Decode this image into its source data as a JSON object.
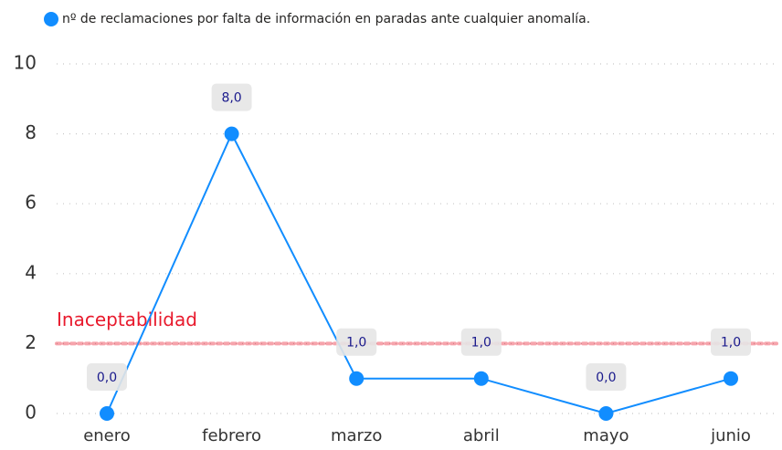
{
  "chart_data": {
    "type": "line",
    "categories": [
      "enero",
      "febrero",
      "marzo",
      "abril",
      "mayo",
      "junio"
    ],
    "series": [
      {
        "name": "nº de reclamaciones por falta de información en paradas ante cualquier anomalía.",
        "color": "#118dff",
        "values": [
          0,
          8,
          1,
          1,
          0,
          1
        ],
        "value_labels": [
          "0,0",
          "8,0",
          "1,0",
          "1,0",
          "0,0",
          "1,0"
        ]
      }
    ],
    "ylim": [
      0,
      10
    ],
    "yticks": [
      0,
      2,
      4,
      6,
      8,
      10
    ],
    "grid": true,
    "reference_line": {
      "value": 2,
      "label": "Inaceptabilidad",
      "color": "#e8192c"
    }
  }
}
